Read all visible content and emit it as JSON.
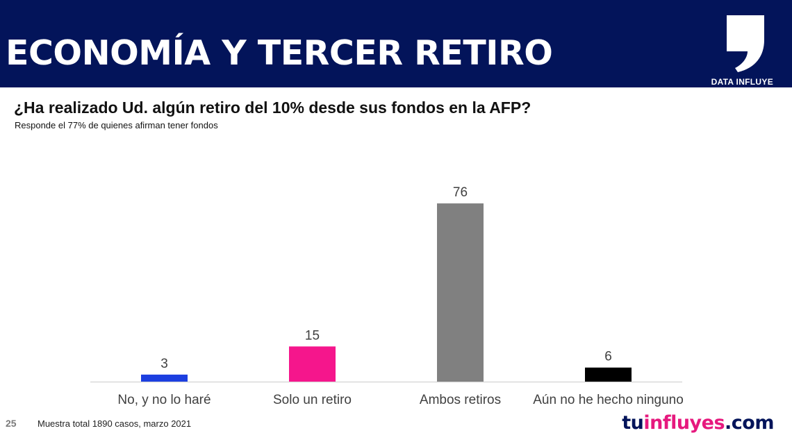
{
  "header": {
    "title": "ECONOMÍA Y TERCER RETIRO",
    "logo_text": "DATA INFLUYE"
  },
  "question": "¿Ha realizado Ud. algún retiro del 10% desde sus fondos en la AFP?",
  "subtitle": "Responde el 77% de quienes afirman tener fondos",
  "footer": {
    "page_number": "25",
    "note": "Muestra total 1890 casos,  marzo 2021",
    "brand_part1": "tu",
    "brand_part2": "influyes",
    "brand_part3": ".com"
  },
  "colors": {
    "header_bg": "#03145a",
    "brand_accent": "#e6197e"
  },
  "chart_data": {
    "type": "bar",
    "categories": [
      "No, y no lo haré",
      "Solo un retiro",
      "Ambos retiros",
      "Aún no he hecho ninguno"
    ],
    "values": [
      3,
      15,
      76,
      6
    ],
    "colors": [
      "#1c3fe0",
      "#f5168c",
      "#808080",
      "#000000"
    ],
    "ylim": [
      0,
      85
    ],
    "grid": false,
    "legend": "none"
  }
}
